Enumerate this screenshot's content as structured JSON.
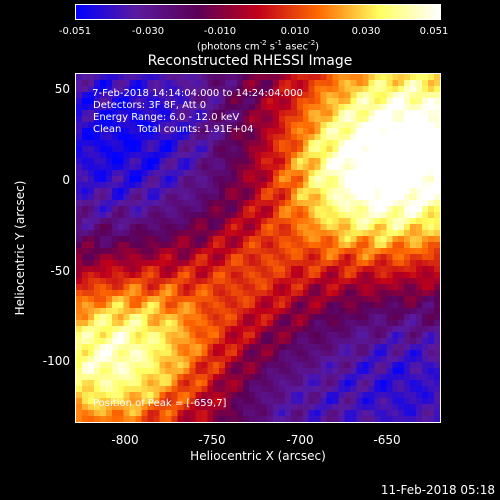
{
  "colorbar": {
    "ticks": [
      "-0.051",
      "-0.030",
      "-0.010",
      "0.010",
      "0.030",
      "0.051"
    ],
    "units_prefix": "(photons cm",
    "units_exp1": "-2",
    "units_mid1": " s",
    "units_exp2": "-1",
    "units_mid2": " asec",
    "units_exp3": "-2",
    "units_suffix": ")",
    "colors": [
      "#0000ff",
      "#5a1a9e",
      "#5b0057",
      "#c0001a",
      "#ff6a00",
      "#ffff60",
      "#ffffff"
    ]
  },
  "title": "Reconstructed RHESSI Image",
  "annotations": {
    "line1": " 7-Feb-2018 14:14:04.000 to 14:24:04.000",
    "line2": "Detectors: 3F 8F, Att 0",
    "line3": "Energy Range: 6.0 - 12.0 keV",
    "line4": "Clean     Total counts: 1.91E+04",
    "peak": "Position of Peak = [-659,7]"
  },
  "axes": {
    "xlabel": "Heliocentric X (arcsec)",
    "ylabel": "Heliocentric Y (arcsec)",
    "xticks": [
      "-800",
      "-750",
      "-700",
      "-650"
    ],
    "yticks": [
      "50",
      "0",
      "-50",
      "-100"
    ]
  },
  "timestamp": "11-Feb-2018 05:18"
}
